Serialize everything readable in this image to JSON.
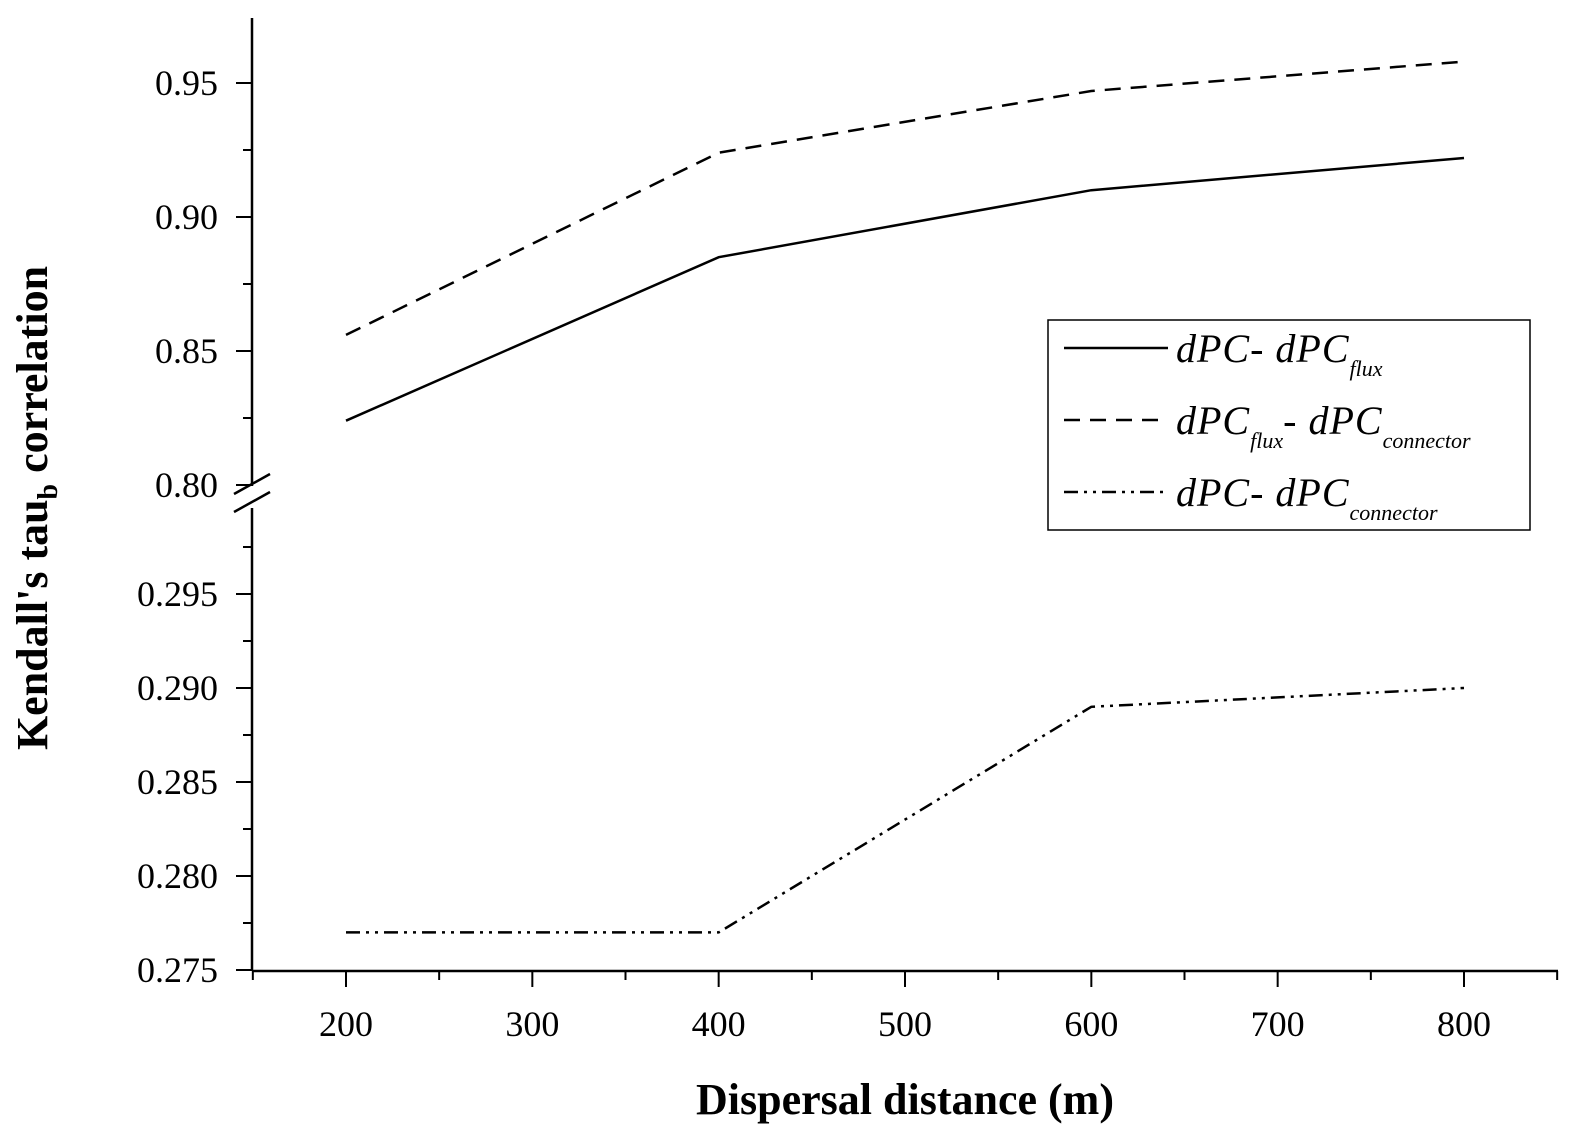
{
  "chart_data": {
    "type": "line",
    "xlabel": "Dispersal distance (m)",
    "ylabel": {
      "main": "Kendall's tau",
      "subscript": "b",
      "suffix": " correlation"
    },
    "x": [
      200,
      400,
      600,
      800
    ],
    "xlim": [
      150,
      850
    ],
    "xticks": [
      "200",
      "300",
      "400",
      "500",
      "600",
      "700",
      "800"
    ],
    "broken_y_axis": true,
    "upper_panel": {
      "ylim": [
        0.8,
        0.975
      ],
      "yticks": [
        "0.80",
        "0.85",
        "0.90",
        "0.95"
      ]
    },
    "lower_panel": {
      "ylim": [
        0.275,
        0.2985
      ],
      "yticks": [
        "0.275",
        "0.280",
        "0.285",
        "0.290",
        "0.295"
      ]
    },
    "series": [
      {
        "panel": "upper",
        "style": "solid",
        "values": [
          0.824,
          0.885,
          0.91,
          0.922
        ],
        "legend": [
          {
            "text": "dPC- dPC",
            "sub": false
          },
          {
            "text": "flux",
            "sub": true
          }
        ]
      },
      {
        "panel": "upper",
        "style": "dashed",
        "values": [
          0.856,
          0.924,
          0.947,
          0.958
        ],
        "legend": [
          {
            "text": "dPC",
            "sub": false
          },
          {
            "text": "flux",
            "sub": true
          },
          {
            "text": "- dPC",
            "sub": false
          },
          {
            "text": "connector",
            "sub": true
          }
        ]
      },
      {
        "panel": "lower",
        "style": "dash-dot-dot",
        "values": [
          0.277,
          0.277,
          0.289,
          0.29
        ],
        "legend": [
          {
            "text": "dPC- dPC",
            "sub": false
          },
          {
            "text": "connector",
            "sub": true
          }
        ]
      }
    ],
    "legend_position": "upper-right"
  }
}
